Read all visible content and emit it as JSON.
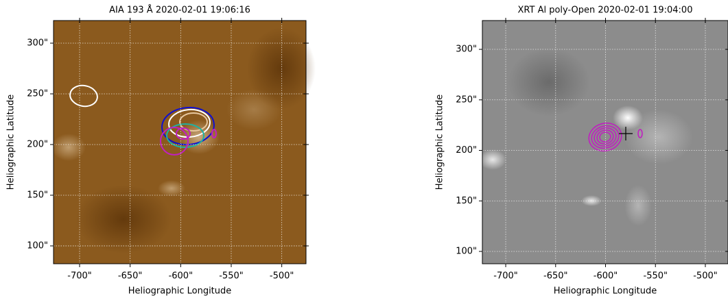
{
  "chart_data": [
    {
      "type": "image",
      "title": "AIA 193 Å 2020-02-01 19:06:16",
      "x_label": "Heliographic Longitude",
      "y_label": "Heliographic Latitude",
      "xlim": [
        -725.8,
        -476
      ],
      "ylim": [
        82.4,
        322.3
      ],
      "xticks": [
        {
          "value": -700,
          "label": "-700\""
        },
        {
          "value": -650,
          "label": "-650\""
        },
        {
          "value": -600,
          "label": "-600\""
        },
        {
          "value": -550,
          "label": "-550\""
        },
        {
          "value": -500,
          "label": "-500\""
        }
      ],
      "yticks": [
        {
          "value": 100,
          "label": "100\""
        },
        {
          "value": 150,
          "label": "150\""
        },
        {
          "value": 200,
          "label": "200\""
        },
        {
          "value": 250,
          "label": "250\""
        },
        {
          "value": 300,
          "label": "300\""
        }
      ],
      "grid": true,
      "color": "#8b5a1e"
    },
    {
      "type": "image",
      "title": "XRT Al poly-Open 2020-02-01 19:04:00",
      "x_label": "Heliographic Longitude",
      "y_label": "Heliographic Latitude",
      "xlim": [
        -723.4,
        -477.3
      ],
      "ylim": [
        87.8,
        328.5
      ],
      "xticks": [
        {
          "value": -700,
          "label": "-700\""
        },
        {
          "value": -650,
          "label": "-650\""
        },
        {
          "value": -600,
          "label": "-600\""
        },
        {
          "value": -550,
          "label": "-550\""
        },
        {
          "value": -500,
          "label": "-500\""
        }
      ],
      "yticks": [
        {
          "value": 100,
          "label": "100\""
        },
        {
          "value": 150,
          "label": "150\""
        },
        {
          "value": 200,
          "label": "200\""
        },
        {
          "value": 250,
          "label": "250\""
        },
        {
          "value": 300,
          "label": "300\""
        }
      ],
      "grid": true,
      "color": "#8c8c8c"
    }
  ]
}
